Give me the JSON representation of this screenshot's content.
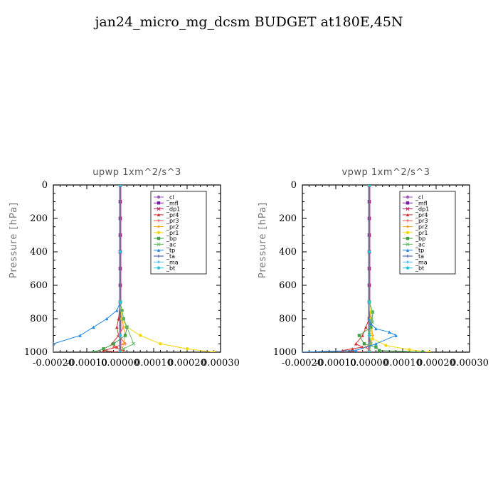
{
  "title": "jan24_micro_mg_dcsm  BUDGET at180E,45N",
  "colors": {
    "_cl": "#9b59b6",
    "_mfl": "#7b1fa2",
    "_dp1": "#c2185b",
    "_pr4": "#d32f2f",
    "_pr3": "#ef5350",
    "_pr2": "#ffa726",
    "_pr1": "#f5d60a",
    "_bp": "#43a047",
    "_ac": "#66bb6a",
    "_tp": "#1e88e5",
    "_ta": "#3949ab",
    "_ma": "#4fc3f7",
    "_bt": "#26c6da"
  },
  "chart_data": [
    {
      "type": "line",
      "title": "upwp   1xm^2/s^3",
      "ylabel": "Pressure [hPa]",
      "xlim": [
        -0.0002,
        0.0003
      ],
      "ylim": [
        1000,
        0
      ],
      "xticks": [
        "-0.00020",
        "-0.00010",
        "0.00000",
        "0.00010",
        "0.00020",
        "0.00030"
      ],
      "yticks": [
        "0",
        "200",
        "400",
        "600",
        "800",
        "1000"
      ],
      "legend_position": "top-right",
      "series": [
        {
          "name": "_cl",
          "x": [
            0,
            0,
            0,
            0,
            0,
            0,
            0,
            0,
            0,
            0
          ],
          "y": [
            0,
            100,
            200,
            300,
            400,
            500,
            600,
            700,
            800,
            1000
          ]
        },
        {
          "name": "_mfl",
          "x": [
            0,
            0,
            0,
            0,
            0,
            0,
            0,
            0,
            0,
            0
          ],
          "y": [
            0,
            100,
            200,
            300,
            400,
            500,
            600,
            700,
            800,
            1000
          ]
        },
        {
          "name": "_dp1",
          "x": [
            0,
            0,
            0,
            0,
            0,
            0,
            0,
            0,
            0,
            0
          ],
          "y": [
            0,
            100,
            200,
            300,
            400,
            500,
            600,
            700,
            800,
            1000
          ]
        },
        {
          "name": "_pr4",
          "x": [
            0,
            0,
            -5e-06,
            -1e-05,
            -5e-06,
            -2.5e-05,
            -1e-05,
            -5e-05,
            -1e-05
          ],
          "y": [
            0,
            700,
            800,
            850,
            900,
            950,
            970,
            990,
            1000
          ]
        },
        {
          "name": "_pr3",
          "x": [
            0,
            0,
            5e-06,
            1e-05,
            -5e-06,
            1.5e-05,
            -2e-05,
            1e-05,
            0
          ],
          "y": [
            0,
            700,
            800,
            850,
            900,
            950,
            970,
            990,
            1000
          ]
        },
        {
          "name": "_pr2",
          "x": [
            0,
            0,
            5e-06,
            1e-05,
            1.5e-05,
            1e-05,
            5e-06
          ],
          "y": [
            0,
            700,
            800,
            850,
            900,
            950,
            1000
          ]
        },
        {
          "name": "_pr1",
          "x": [
            0,
            0,
            5e-06,
            2e-05,
            6e-05,
            0.00012,
            0.0002,
            0.00028
          ],
          "y": [
            0,
            700,
            800,
            850,
            900,
            950,
            980,
            1000
          ]
        },
        {
          "name": "_bp",
          "x": [
            0,
            0,
            5e-06,
            1e-05,
            2e-05,
            1.5e-05,
            -2e-05,
            -5e-05,
            -8e-05
          ],
          "y": [
            0,
            700,
            750,
            800,
            850,
            900,
            950,
            980,
            1000
          ]
        },
        {
          "name": "_ac",
          "x": [
            0,
            0,
            5e-06,
            1e-05,
            2e-05,
            4e-05,
            1e-05,
            0
          ],
          "y": [
            0,
            700,
            750,
            800,
            850,
            950,
            980,
            1000
          ]
        },
        {
          "name": "_tp",
          "x": [
            0,
            0,
            -1e-05,
            -4e-05,
            -8e-05,
            -0.00012,
            -0.0002,
            -0.0002
          ],
          "y": [
            0,
            700,
            750,
            800,
            850,
            900,
            950,
            1000
          ]
        },
        {
          "name": "_ta",
          "x": [
            0,
            0,
            0,
            0,
            0
          ],
          "y": [
            0,
            400,
            700,
            900,
            1000
          ]
        },
        {
          "name": "_ma",
          "x": [
            0,
            0,
            0,
            0,
            0
          ],
          "y": [
            0,
            400,
            700,
            900,
            1000
          ]
        },
        {
          "name": "_bt",
          "x": [
            0,
            0,
            0,
            0,
            0
          ],
          "y": [
            0,
            400,
            700,
            900,
            1000
          ]
        }
      ]
    },
    {
      "type": "line",
      "title": "vpwp   1xm^2/s^3",
      "ylabel": "Pressure [hPa]",
      "xlim": [
        -0.0002,
        0.0003
      ],
      "ylim": [
        1000,
        0
      ],
      "xticks": [
        "-0.00020",
        "-0.00010",
        "0.00000",
        "0.00010",
        "0.00020",
        "0.00030"
      ],
      "yticks": [
        "0",
        "200",
        "400",
        "600",
        "800",
        "1000"
      ],
      "legend_position": "top-right",
      "series": [
        {
          "name": "_cl",
          "x": [
            0,
            0,
            0,
            0,
            0,
            0,
            0,
            0,
            0,
            0
          ],
          "y": [
            0,
            100,
            200,
            300,
            400,
            500,
            600,
            700,
            800,
            1000
          ]
        },
        {
          "name": "_mfl",
          "x": [
            0,
            0,
            0,
            0,
            0,
            0,
            0,
            0,
            0,
            0
          ],
          "y": [
            0,
            100,
            200,
            300,
            400,
            500,
            600,
            700,
            800,
            1000
          ]
        },
        {
          "name": "_dp1",
          "x": [
            0,
            0,
            0,
            0,
            0,
            0,
            0,
            0,
            0,
            0
          ],
          "y": [
            0,
            100,
            200,
            300,
            400,
            500,
            600,
            700,
            800,
            1000
          ]
        },
        {
          "name": "_pr4",
          "x": [
            0,
            0,
            -1e-05,
            -2e-05,
            -4e-05,
            -2e-05,
            -5e-05,
            -8e-05,
            -2e-05
          ],
          "y": [
            0,
            800,
            850,
            900,
            950,
            970,
            980,
            990,
            1000
          ]
        },
        {
          "name": "_pr3",
          "x": [
            0,
            0,
            5e-06,
            1e-05,
            5e-06,
            -1e-05,
            0,
            0
          ],
          "y": [
            0,
            800,
            850,
            900,
            950,
            970,
            990,
            1000
          ]
        },
        {
          "name": "_pr2",
          "x": [
            0,
            0,
            5e-06,
            1e-05,
            5e-06,
            0
          ],
          "y": [
            0,
            700,
            800,
            900,
            950,
            1000
          ]
        },
        {
          "name": "_pr1",
          "x": [
            0,
            0,
            5e-06,
            5e-06,
            1e-05,
            5e-05,
            0.00012,
            0.00018
          ],
          "y": [
            0,
            700,
            800,
            850,
            920,
            960,
            985,
            1000
          ]
        },
        {
          "name": "_bp",
          "x": [
            0,
            0,
            1e-05,
            5e-06,
            -3e-05,
            -1.5e-05,
            2e-05,
            3e-05,
            0.00016
          ],
          "y": [
            0,
            700,
            760,
            850,
            900,
            950,
            970,
            990,
            1000
          ]
        },
        {
          "name": "_ac",
          "x": [
            0,
            0,
            1e-05,
            1e-05,
            0,
            5e-06,
            0
          ],
          "y": [
            0,
            700,
            760,
            820,
            880,
            950,
            1000
          ]
        },
        {
          "name": "_tp",
          "x": [
            0,
            0,
            5e-06,
            2e-05,
            6e-05,
            8e-05,
            2e-05,
            -4e-05,
            -0.0002
          ],
          "y": [
            0,
            800,
            830,
            860,
            880,
            900,
            950,
            990,
            1000
          ]
        },
        {
          "name": "_ta",
          "x": [
            0,
            0,
            0,
            0,
            0
          ],
          "y": [
            0,
            400,
            700,
            900,
            1000
          ]
        },
        {
          "name": "_ma",
          "x": [
            0,
            0,
            0,
            0,
            0
          ],
          "y": [
            0,
            400,
            700,
            900,
            1000
          ]
        },
        {
          "name": "_bt",
          "x": [
            0,
            0,
            0,
            0,
            0
          ],
          "y": [
            0,
            400,
            700,
            900,
            1000
          ]
        }
      ]
    }
  ]
}
